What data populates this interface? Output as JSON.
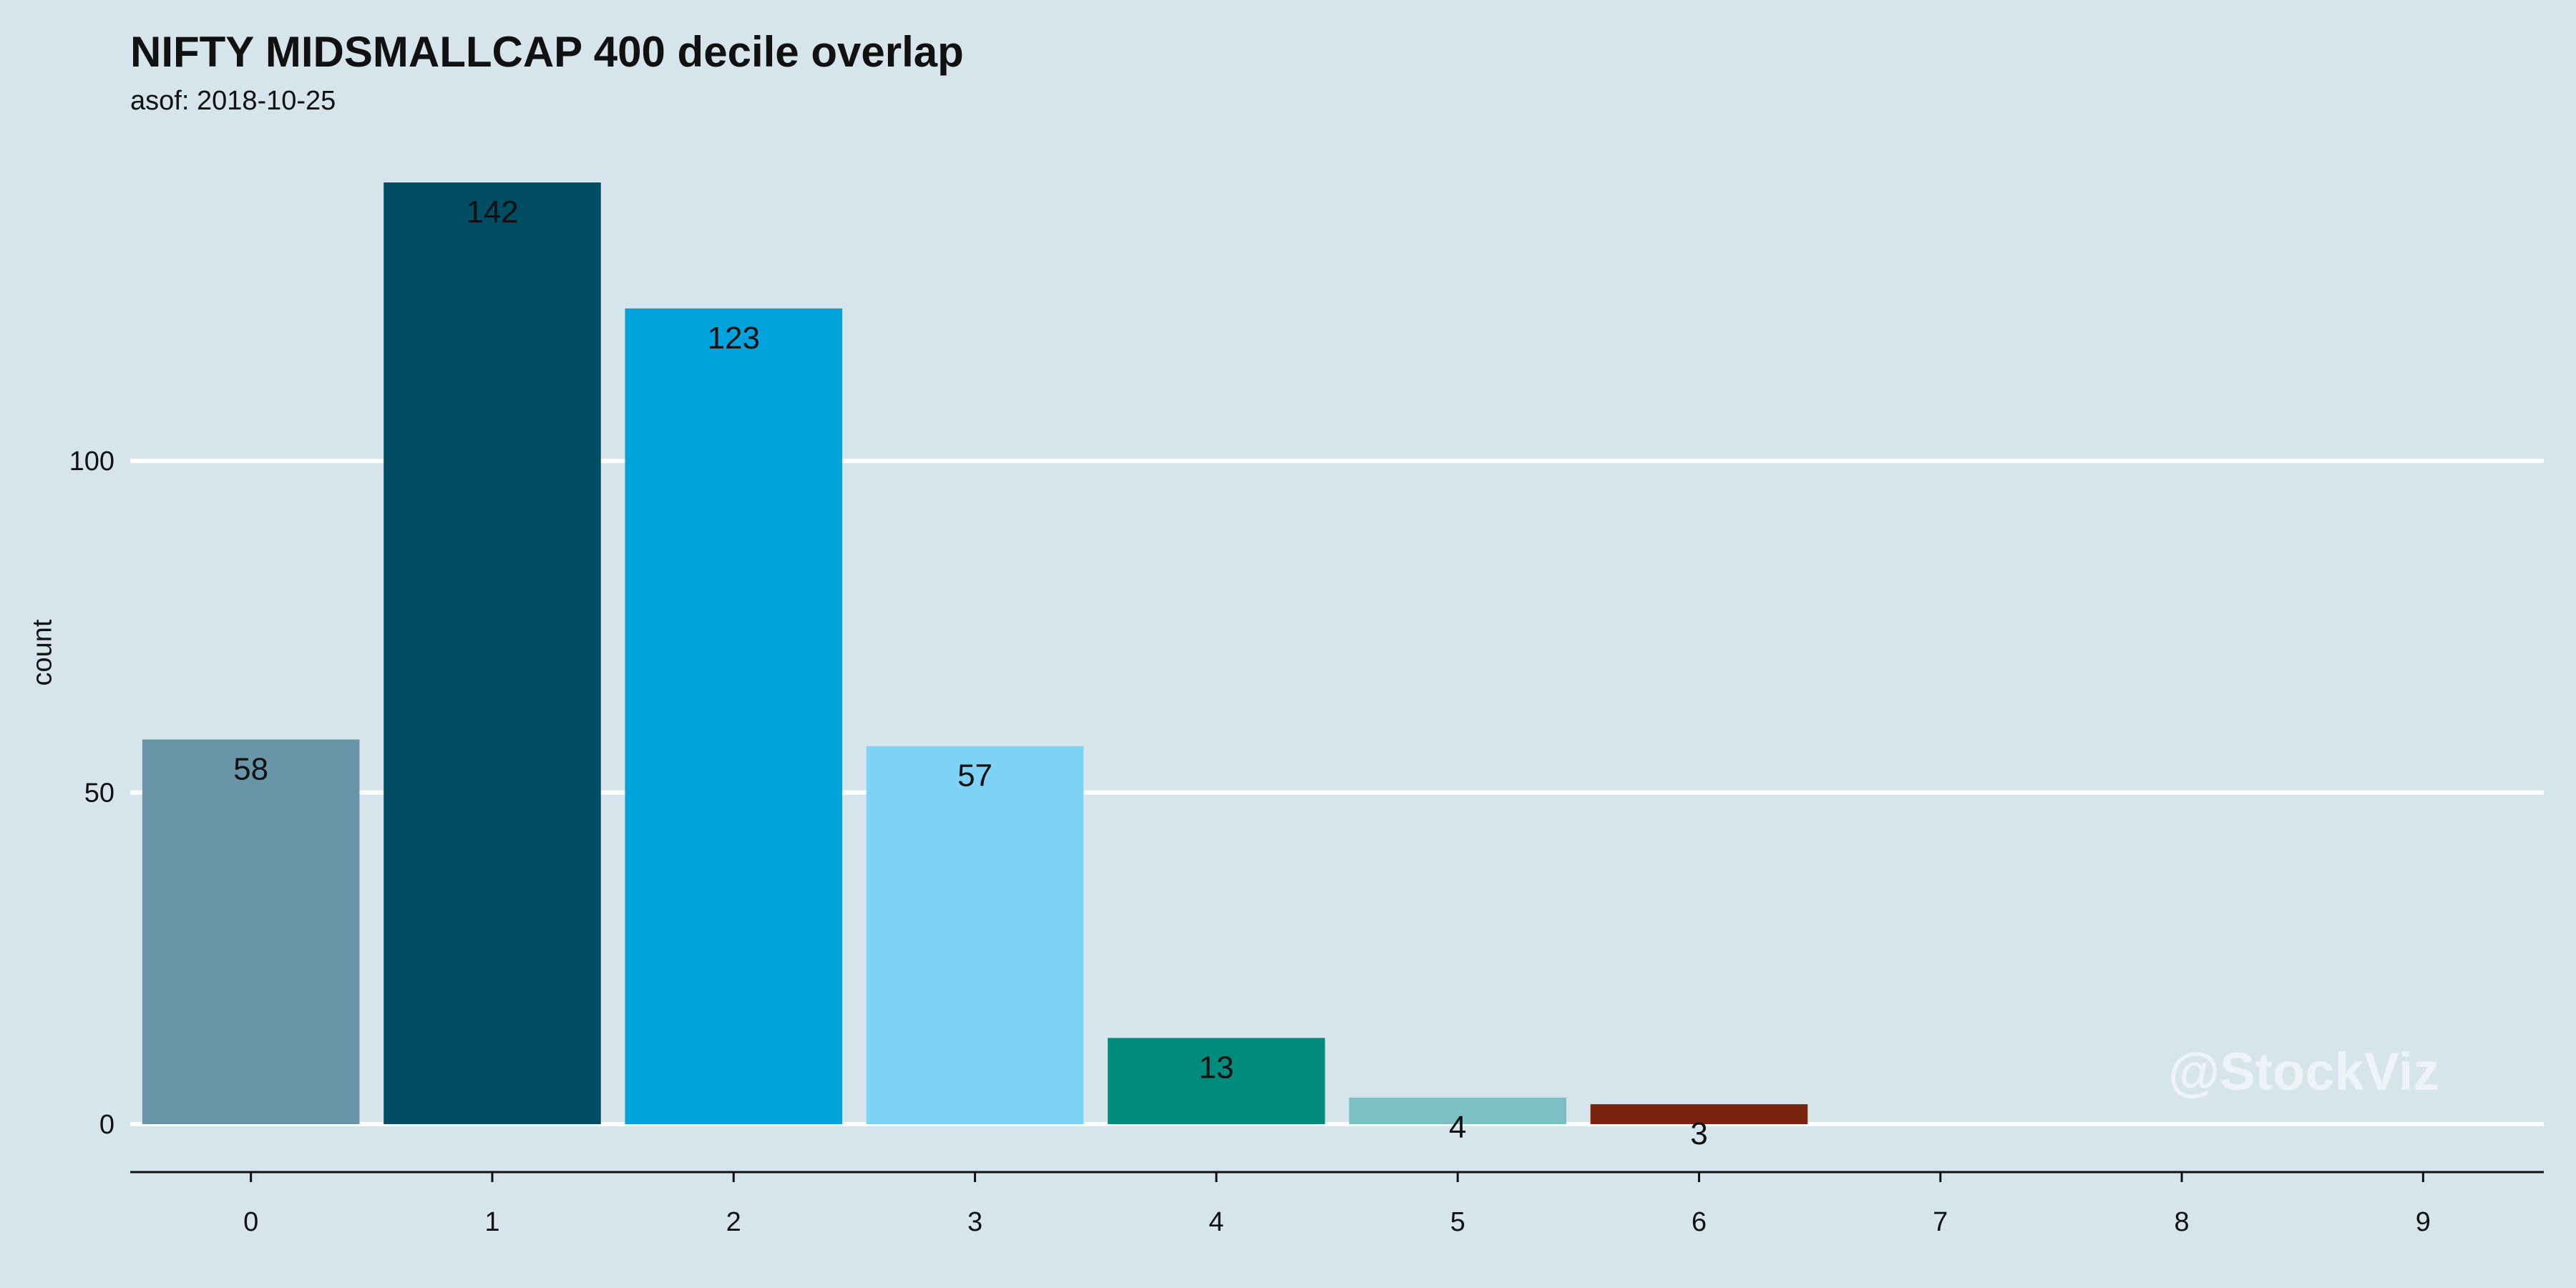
{
  "chart_data": {
    "type": "bar",
    "title": "NIFTY MIDSMALLCAP 400 decile overlap",
    "subtitle": "asof: 2018-10-25",
    "xlabel": "",
    "ylabel": "count",
    "categories": [
      "0",
      "1",
      "2",
      "3",
      "4",
      "5",
      "6",
      "7",
      "8",
      "9"
    ],
    "values": [
      58,
      142,
      123,
      57,
      13,
      4,
      3,
      null,
      null,
      null
    ],
    "colors": [
      "#6895a8",
      "#004c63",
      "#00a3db",
      "#7dd2f6",
      "#008b7d",
      "#7bc1c3",
      "#7a2410",
      null,
      null,
      null
    ],
    "ylim": [
      0,
      142
    ],
    "yticks": [
      0,
      50,
      100
    ],
    "grid": "horizontal",
    "legend": "none"
  },
  "watermark": "@StockViz"
}
